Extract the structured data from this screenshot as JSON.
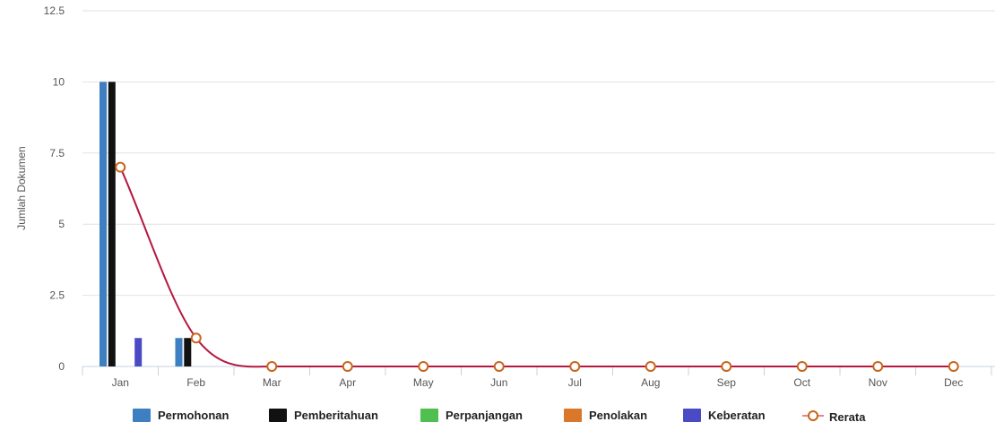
{
  "chart_data": {
    "type": "bar",
    "title": "",
    "xlabel": "",
    "ylabel": "Jumlah Dokumen",
    "ylim": [
      0,
      12.5
    ],
    "yticks": [
      "0",
      "2.5",
      "5",
      "7.5",
      "10",
      "12.5"
    ],
    "grid": true,
    "legend_position": "bottom",
    "categories": [
      "Jan",
      "Feb",
      "Mar",
      "Apr",
      "May",
      "Jun",
      "Jul",
      "Aug",
      "Sep",
      "Oct",
      "Nov",
      "Dec"
    ],
    "series": [
      {
        "name": "Permohonan",
        "type": "bar",
        "color": "#3d7fc1",
        "values": [
          10,
          1,
          0,
          0,
          0,
          0,
          0,
          0,
          0,
          0,
          0,
          0
        ]
      },
      {
        "name": "Pemberitahuan",
        "type": "bar",
        "color": "#111111",
        "values": [
          10,
          1,
          0,
          0,
          0,
          0,
          0,
          0,
          0,
          0,
          0,
          0
        ]
      },
      {
        "name": "Perpanjangan",
        "type": "bar",
        "color": "#4fbf4f",
        "values": [
          0,
          0,
          0,
          0,
          0,
          0,
          0,
          0,
          0,
          0,
          0,
          0
        ]
      },
      {
        "name": "Penolakan",
        "type": "bar",
        "color": "#d9782a",
        "values": [
          0,
          0,
          0,
          0,
          0,
          0,
          0,
          0,
          0,
          0,
          0,
          0
        ]
      },
      {
        "name": "Keberatan",
        "type": "bar",
        "color": "#4a4ac4",
        "values": [
          1,
          0,
          0,
          0,
          0,
          0,
          0,
          0,
          0,
          0,
          0,
          0
        ]
      },
      {
        "name": "Rerata",
        "type": "line",
        "color": "#b5173f",
        "marker_color": "#c8651b",
        "values": [
          7,
          1,
          0,
          0,
          0,
          0,
          0,
          0,
          0,
          0,
          0,
          0
        ]
      }
    ]
  }
}
